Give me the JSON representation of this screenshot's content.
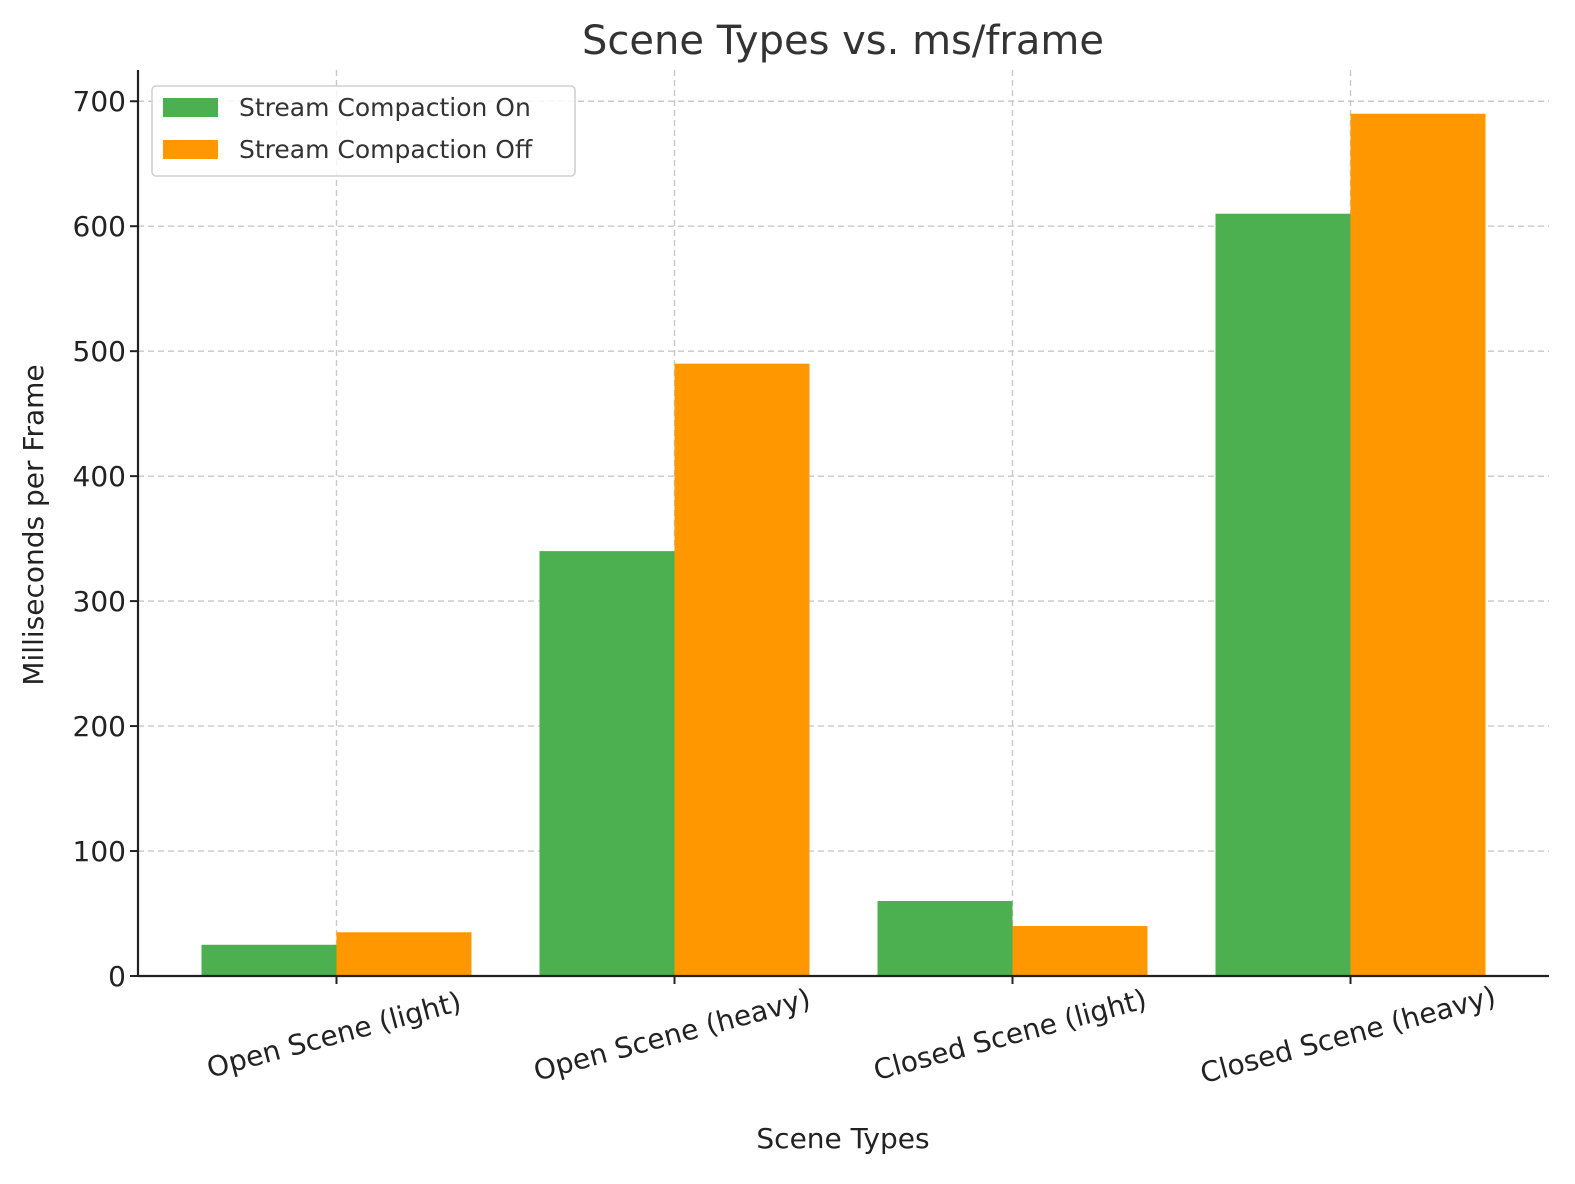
{
  "chart_data": {
    "type": "bar",
    "title": "Scene Types vs. ms/frame",
    "xlabel": "Scene Types",
    "ylabel": "Milliseconds per Frame",
    "categories": [
      "Open Scene (light)",
      "Open Scene (heavy)",
      "Closed Scene (light)",
      "Closed Scene (heavy)"
    ],
    "series": [
      {
        "name": "Stream Compaction On",
        "values": [
          25,
          340,
          60,
          610
        ],
        "color": "#4caf50"
      },
      {
        "name": "Stream Compaction Off",
        "values": [
          35,
          490,
          40,
          690
        ],
        "color": "#ff9800"
      }
    ],
    "ylim": [
      0,
      725
    ],
    "yticks": [
      0,
      100,
      200,
      300,
      400,
      500,
      600,
      700
    ],
    "grid": true,
    "legend_position": "top-left",
    "x_tick_rotation_deg": -15
  }
}
